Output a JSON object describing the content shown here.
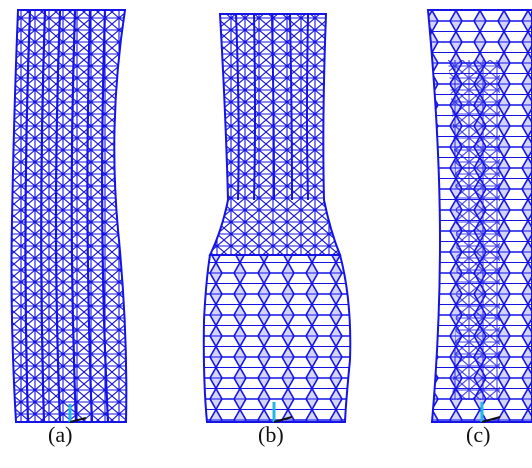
{
  "figure": {
    "panels": [
      {
        "label": "(a)",
        "shape": "bent",
        "mesh_color": "#1414e6"
      },
      {
        "label": "(b)",
        "shape": "bulged",
        "mesh_color": "#1414e6"
      },
      {
        "label": "(c)",
        "shape": "necked",
        "mesh_color": "#1414e6"
      }
    ],
    "axis_marker_colors": {
      "y": "#22b8e6",
      "x": "#111111"
    }
  }
}
